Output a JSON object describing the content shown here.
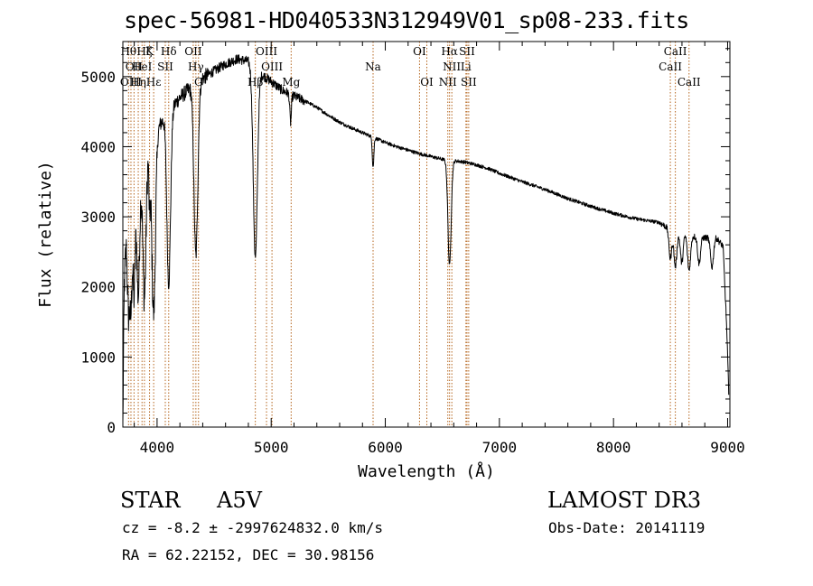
{
  "title": "spec-56981-HD040533N312949V01_sp08-233.fits",
  "chart_data": {
    "type": "line",
    "title": "spec-56981-HD040533N312949V01_sp08-233.fits",
    "xlabel": "Wavelength (Å)",
    "ylabel": "Flux (relative)",
    "xlim": [
      3700,
      9020
    ],
    "ylim": [
      0,
      5500
    ],
    "x_ticks": [
      4000,
      5000,
      6000,
      7000,
      8000,
      9000
    ],
    "y_ticks": [
      0,
      1000,
      2000,
      3000,
      4000,
      5000
    ],
    "line_color": "#000000",
    "marker_color": "#b5651d",
    "continuum": [
      [
        3700,
        0
      ],
      [
        3712,
        2000
      ],
      [
        3730,
        2700
      ],
      [
        3760,
        3100
      ],
      [
        3800,
        3400
      ],
      [
        3850,
        3650
      ],
      [
        3900,
        3900
      ],
      [
        3950,
        4050
      ],
      [
        4000,
        4250
      ],
      [
        4100,
        4500
      ],
      [
        4200,
        4700
      ],
      [
        4300,
        4850
      ],
      [
        4400,
        4980
      ],
      [
        4500,
        5080
      ],
      [
        4600,
        5180
      ],
      [
        4700,
        5250
      ],
      [
        4800,
        5220
      ],
      [
        4900,
        5050
      ],
      [
        5000,
        4930
      ],
      [
        5100,
        4800
      ],
      [
        5200,
        4720
      ],
      [
        5300,
        4650
      ],
      [
        5400,
        4560
      ],
      [
        5500,
        4450
      ],
      [
        5600,
        4350
      ],
      [
        5700,
        4270
      ],
      [
        5800,
        4200
      ],
      [
        5900,
        4130
      ],
      [
        6000,
        4060
      ],
      [
        6100,
        4000
      ],
      [
        6200,
        3950
      ],
      [
        6300,
        3900
      ],
      [
        6400,
        3860
      ],
      [
        6500,
        3820
      ],
      [
        6600,
        3800
      ],
      [
        6700,
        3780
      ],
      [
        6800,
        3740
      ],
      [
        6900,
        3690
      ],
      [
        7000,
        3620
      ],
      [
        7200,
        3500
      ],
      [
        7400,
        3390
      ],
      [
        7600,
        3260
      ],
      [
        7800,
        3150
      ],
      [
        8000,
        3050
      ],
      [
        8200,
        2970
      ],
      [
        8400,
        2920
      ],
      [
        8500,
        2820
      ],
      [
        8600,
        2760
      ],
      [
        8700,
        2720
      ],
      [
        8800,
        2700
      ],
      [
        8900,
        2700
      ],
      [
        8960,
        2580
      ],
      [
        8990,
        1500
      ],
      [
        9010,
        500
      ]
    ],
    "absorption_lines": [
      {
        "center": 3750,
        "depth": 1300,
        "width": 10
      },
      {
        "center": 3771,
        "depth": 1400,
        "width": 9
      },
      {
        "center": 3798,
        "depth": 1500,
        "width": 10
      },
      {
        "center": 3835,
        "depth": 1700,
        "width": 12
      },
      {
        "center": 3889,
        "depth": 2000,
        "width": 14
      },
      {
        "center": 3934,
        "depth": 800,
        "width": 6
      },
      {
        "center": 3970,
        "depth": 2500,
        "width": 16
      },
      {
        "center": 4102,
        "depth": 2450,
        "width": 16
      },
      {
        "center": 4340,
        "depth": 2450,
        "width": 17
      },
      {
        "center": 4861,
        "depth": 2700,
        "width": 18
      },
      {
        "center": 5170,
        "depth": 400,
        "width": 7
      },
      {
        "center": 5893,
        "depth": 420,
        "width": 7
      },
      {
        "center": 6563,
        "depth": 1500,
        "width": 14
      },
      {
        "center": 8498,
        "depth": 420,
        "width": 12
      },
      {
        "center": 8542,
        "depth": 500,
        "width": 13
      },
      {
        "center": 8598,
        "depth": 420,
        "width": 12
      },
      {
        "center": 8662,
        "depth": 500,
        "width": 13
      },
      {
        "center": 8750,
        "depth": 380,
        "width": 12
      },
      {
        "center": 8863,
        "depth": 420,
        "width": 13
      }
    ],
    "line_markers": [
      {
        "wavelength": 3750,
        "label": "Hθ",
        "row": 0
      },
      {
        "wavelength": 3798,
        "label": "OII",
        "row": 1
      },
      {
        "wavelength": 3771,
        "label": "OIII",
        "row": 2
      },
      {
        "wavelength": 3835,
        "label": "Hη",
        "row": 2
      },
      {
        "wavelength": 3868,
        "label": "HeI",
        "row": 1
      },
      {
        "wavelength": 3889,
        "label": "Hζ",
        "row": 0
      },
      {
        "wavelength": 3934,
        "label": "K",
        "row": 0
      },
      {
        "wavelength": 3970,
        "label": "Hε",
        "row": 2
      },
      {
        "wavelength": 4072,
        "label": "SII",
        "row": 1
      },
      {
        "wavelength": 4102,
        "label": "Hδ",
        "row": 0
      },
      {
        "wavelength": 4317,
        "label": "OII",
        "row": 0
      },
      {
        "wavelength": 4340,
        "label": "Hγ",
        "row": 1
      },
      {
        "wavelength": 4363,
        "label": "G",
        "row": 2
      },
      {
        "wavelength": 4861,
        "label": "Hβ",
        "row": 2
      },
      {
        "wavelength": 4959,
        "label": "OIII",
        "row": 0
      },
      {
        "wavelength": 5007,
        "label": "OIII",
        "row": 1
      },
      {
        "wavelength": 5175,
        "label": "Mg",
        "row": 2
      },
      {
        "wavelength": 5893,
        "label": "Na",
        "row": 1
      },
      {
        "wavelength": 6300,
        "label": "OI",
        "row": 0
      },
      {
        "wavelength": 6364,
        "label": "OI",
        "row": 2
      },
      {
        "wavelength": 6548,
        "label": "NII",
        "row": 2
      },
      {
        "wavelength": 6563,
        "label": "Hα",
        "row": 0
      },
      {
        "wavelength": 6583,
        "label": "NII",
        "row": 1
      },
      {
        "wavelength": 6707,
        "label": "Li",
        "row": 1
      },
      {
        "wavelength": 6716,
        "label": "SII",
        "row": 0
      },
      {
        "wavelength": 6731,
        "label": "SII",
        "row": 2
      },
      {
        "wavelength": 8498,
        "label": "CaII",
        "row": 1
      },
      {
        "wavelength": 8542,
        "label": "CaII",
        "row": 0
      },
      {
        "wavelength": 8662,
        "label": "CaII",
        "row": 2
      }
    ]
  },
  "info": {
    "object_type": "STAR",
    "spectral_class": "A5V",
    "survey": "LAMOST DR3",
    "redshift": "cz = -8.2 ± -2997624832.0 km/s",
    "obs_date": "Obs-Date: 20141119",
    "coordinates": "RA =  62.22152, DEC =  30.98156"
  }
}
